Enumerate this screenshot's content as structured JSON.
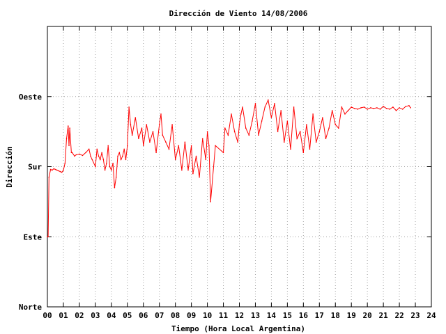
{
  "chart_data": {
    "type": "line",
    "title": "Dirección de Viento 14/08/2006",
    "xlabel": "Tiempo (Hora Local Argentina)",
    "ylabel": "Dirección",
    "xlim": [
      0,
      24
    ],
    "ylim": [
      0,
      4
    ],
    "x_ticks": [
      "00",
      "01",
      "02",
      "03",
      "04",
      "05",
      "06",
      "07",
      "08",
      "09",
      "10",
      "11",
      "12",
      "13",
      "14",
      "15",
      "16",
      "17",
      "18",
      "19",
      "20",
      "21",
      "22",
      "23",
      "24"
    ],
    "y_ticks": [
      {
        "value": 0,
        "label": "Norte"
      },
      {
        "value": 1,
        "label": "Este"
      },
      {
        "value": 2,
        "label": "Sur"
      },
      {
        "value": 3,
        "label": "Oeste"
      }
    ],
    "grid": true,
    "colors": {
      "series": "#ff0000",
      "grid": "#a0a0a0",
      "frame": "#000000"
    },
    "series": [
      {
        "x": [
          0.0,
          0.05,
          0.1,
          0.2,
          0.3,
          0.4,
          0.5,
          0.6,
          0.7,
          0.8,
          0.9,
          1.0,
          1.1,
          1.2,
          1.3,
          1.35,
          1.4,
          1.5,
          1.55,
          1.7,
          1.8,
          2.0,
          2.2,
          2.4,
          2.6,
          2.7,
          2.8,
          3.0,
          3.1,
          3.2,
          3.3,
          3.4,
          3.5,
          3.6,
          3.7,
          3.8,
          3.9,
          4.0,
          4.1,
          4.2,
          4.3,
          4.4,
          4.5,
          4.6,
          4.7,
          4.8,
          4.9,
          5.0,
          5.1,
          5.2,
          5.3,
          5.5,
          5.7,
          5.9,
          6.0,
          6.2,
          6.4,
          6.6,
          6.8,
          7.0,
          7.1,
          7.2,
          7.4,
          7.6,
          7.8,
          8.0,
          8.2,
          8.4,
          8.6,
          8.8,
          9.0,
          9.1,
          9.3,
          9.5,
          9.7,
          9.9,
          10.0,
          10.1,
          10.2,
          10.5,
          11.0,
          11.1,
          11.3,
          11.5,
          11.7,
          11.9,
          12.0,
          12.1,
          12.2,
          12.4,
          12.6,
          12.8,
          13.0,
          13.2,
          13.4,
          13.6,
          13.8,
          14.0,
          14.2,
          14.4,
          14.6,
          14.8,
          15.0,
          15.2,
          15.4,
          15.6,
          15.8,
          16.0,
          16.2,
          16.4,
          16.6,
          16.8,
          17.0,
          17.2,
          17.4,
          17.6,
          17.8,
          18.0,
          18.2,
          18.4,
          18.6,
          18.8,
          19.0,
          19.2,
          19.4,
          19.6,
          19.8,
          20.0,
          20.2,
          20.4,
          20.6,
          20.8,
          21.0,
          21.2,
          21.4,
          21.6,
          21.8,
          22.0,
          22.2,
          22.4,
          22.6,
          22.7
        ],
        "y": [
          1.0,
          1.0,
          1.85,
          1.96,
          1.95,
          1.97,
          1.96,
          1.95,
          1.94,
          1.93,
          1.92,
          1.95,
          2.05,
          2.4,
          2.58,
          2.3,
          2.55,
          2.2,
          2.2,
          2.15,
          2.17,
          2.18,
          2.16,
          2.2,
          2.25,
          2.15,
          2.1,
          2.0,
          2.25,
          2.15,
          2.1,
          2.2,
          2.1,
          1.95,
          2.05,
          2.3,
          2.0,
          1.95,
          2.05,
          1.7,
          1.85,
          2.15,
          2.2,
          2.1,
          2.15,
          2.25,
          2.1,
          2.3,
          2.85,
          2.6,
          2.45,
          2.7,
          2.4,
          2.55,
          2.3,
          2.6,
          2.35,
          2.5,
          2.2,
          2.6,
          2.75,
          2.45,
          2.35,
          2.25,
          2.6,
          2.1,
          2.3,
          1.95,
          2.35,
          1.95,
          2.3,
          1.9,
          2.15,
          1.85,
          2.4,
          2.1,
          2.5,
          2.3,
          1.5,
          2.3,
          2.2,
          2.55,
          2.45,
          2.75,
          2.5,
          2.35,
          2.6,
          2.75,
          2.85,
          2.55,
          2.45,
          2.65,
          2.9,
          2.45,
          2.65,
          2.85,
          2.95,
          2.7,
          2.9,
          2.5,
          2.8,
          2.35,
          2.65,
          2.25,
          2.85,
          2.4,
          2.5,
          2.2,
          2.6,
          2.25,
          2.75,
          2.35,
          2.5,
          2.7,
          2.4,
          2.55,
          2.8,
          2.6,
          2.55,
          2.85,
          2.75,
          2.8,
          2.85,
          2.83,
          2.82,
          2.84,
          2.85,
          2.82,
          2.84,
          2.83,
          2.84,
          2.82,
          2.86,
          2.83,
          2.82,
          2.85,
          2.8,
          2.84,
          2.82,
          2.86,
          2.87,
          2.84
        ]
      }
    ]
  }
}
